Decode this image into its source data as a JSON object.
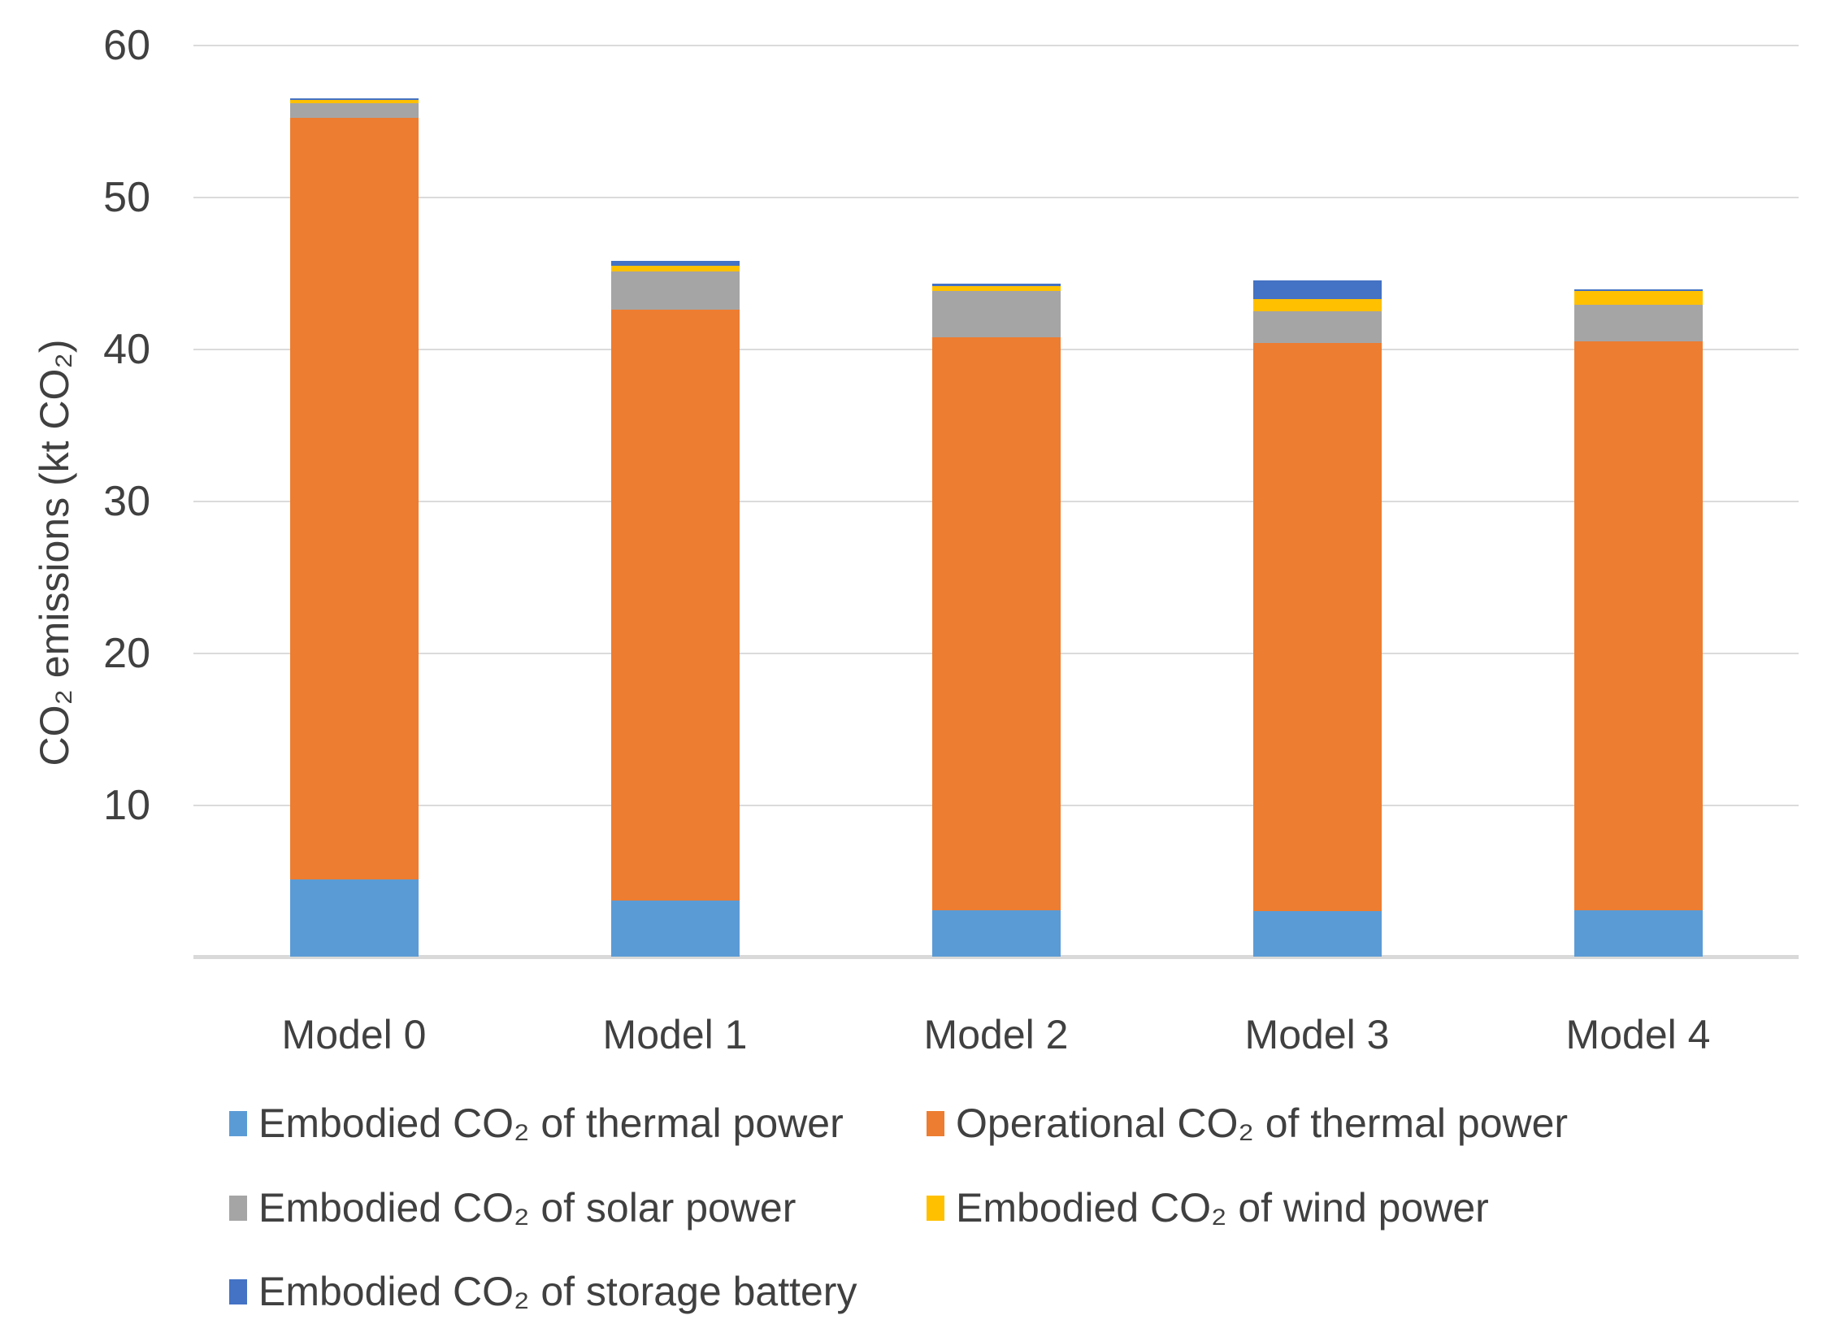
{
  "chart_data": {
    "type": "bar",
    "stacked": true,
    "title": "",
    "xlabel": "",
    "ylabel": "CO₂ emissions (kt CO₂)",
    "categories": [
      "Model 0",
      "Model 1",
      "Model 2",
      "Model 3",
      "Model 4"
    ],
    "series": [
      {
        "name": "Embodied CO₂ of thermal power",
        "color": "#5B9BD5",
        "values": [
          5.1,
          3.7,
          3.1,
          3.0,
          3.1
        ]
      },
      {
        "name": "Operational CO₂ of thermal power",
        "color": "#ED7D31",
        "values": [
          50.1,
          38.9,
          37.7,
          37.4,
          37.4
        ]
      },
      {
        "name": "Embodied CO₂ of solar power",
        "color": "#A5A5A5",
        "values": [
          1.0,
          2.5,
          3.0,
          2.1,
          2.4
        ]
      },
      {
        "name": "Embodied CO₂ of wind power",
        "color": "#FFC000",
        "values": [
          0.2,
          0.4,
          0.35,
          0.8,
          0.95
        ]
      },
      {
        "name": "Embodied CO₂ of storage battery",
        "color": "#4472C4",
        "values": [
          0.1,
          0.3,
          0.15,
          1.2,
          0.1
        ]
      }
    ],
    "ylim": [
      0,
      60
    ],
    "y_ticks": [
      10,
      20,
      30,
      40,
      50,
      60
    ],
    "grid": true,
    "legend_position": "bottom",
    "gridline_color": "#D9D9D9"
  }
}
